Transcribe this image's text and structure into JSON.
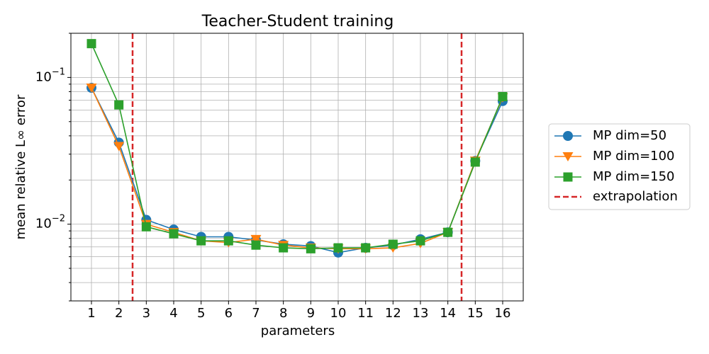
{
  "chart_data": {
    "type": "line",
    "title": "Teacher-Student training",
    "x_label": "parameters",
    "y_label": "mean relative L∞ error",
    "x": [
      1,
      2,
      3,
      4,
      5,
      6,
      7,
      8,
      9,
      10,
      11,
      12,
      13,
      14,
      15,
      16
    ],
    "series": [
      {
        "name": "MP dim=50",
        "color": "#1f77b4",
        "marker": "circle",
        "values": [
          0.085,
          0.036,
          0.0107,
          0.0092,
          0.0082,
          0.0082,
          0.0078,
          0.0073,
          0.0071,
          0.0064,
          0.0069,
          0.0072,
          0.0079,
          0.0088,
          0.027,
          0.069
        ]
      },
      {
        "name": "MP dim=100",
        "color": "#ff7f0e",
        "marker": "triangle-down",
        "values": [
          0.085,
          0.034,
          0.01,
          0.0088,
          0.0077,
          0.0075,
          0.0079,
          0.0072,
          0.0069,
          0.0068,
          0.0068,
          0.0069,
          0.0074,
          0.0088,
          0.027,
          0.073
        ]
      },
      {
        "name": "MP dim=150",
        "color": "#2ca02c",
        "marker": "square",
        "values": [
          0.17,
          0.065,
          0.0096,
          0.0086,
          0.0077,
          0.0077,
          0.0072,
          0.0069,
          0.0068,
          0.0069,
          0.0069,
          0.0073,
          0.0077,
          0.0088,
          0.0265,
          0.074
        ]
      }
    ],
    "reference_lines": {
      "name": "extrapolation",
      "color": "#d62728",
      "x": [
        2.5,
        14.5
      ]
    },
    "xlim": [
      0.25,
      16.75
    ],
    "xticks": [
      1,
      2,
      3,
      4,
      5,
      6,
      7,
      8,
      9,
      10,
      11,
      12,
      13,
      14,
      15,
      16
    ],
    "ylim": [
      0.003,
      0.2
    ],
    "y_scale": "log",
    "yticks": [
      {
        "value": 0.01,
        "label": "10−2"
      },
      {
        "value": 0.1,
        "label": "10−1"
      }
    ],
    "yminorticks": [
      0.003,
      0.004,
      0.005,
      0.006,
      0.007,
      0.008,
      0.009,
      0.02,
      0.03,
      0.04,
      0.05,
      0.06,
      0.07,
      0.08,
      0.09,
      0.2
    ],
    "grid": true,
    "legend_position": "right"
  }
}
